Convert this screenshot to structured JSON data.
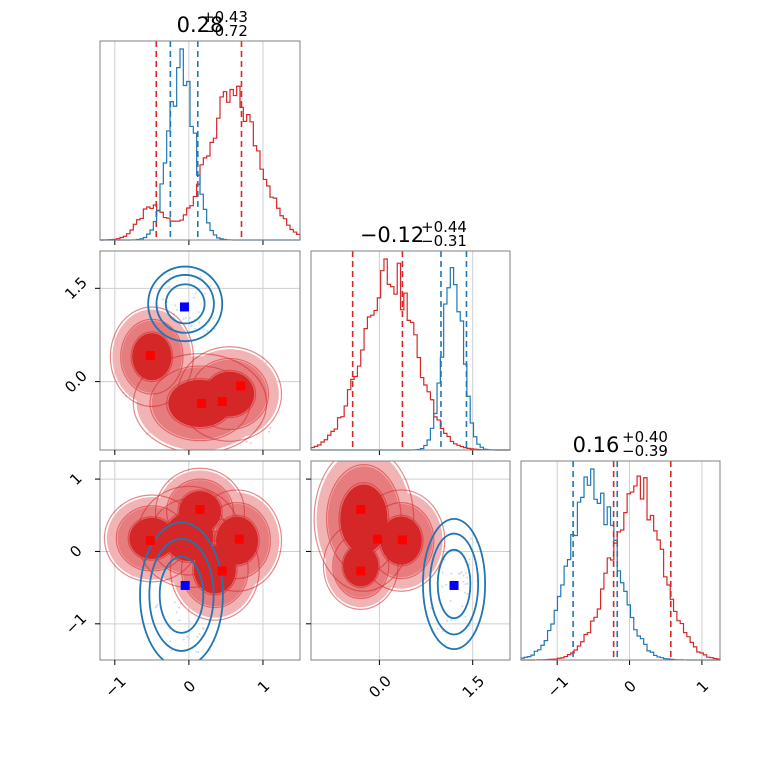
{
  "colors": {
    "red": "#d62728",
    "blue": "#1f77b4",
    "red_fill_outer": "#f2b3b4",
    "red_fill_mid": "#e67c7d",
    "red_fill_inner": "#d62728",
    "red_marker": "#ff0000",
    "blue_marker": "#0000ff"
  },
  "titles": [
    {
      "main": "0.28",
      "sup": "+0.43",
      "sub": "−0.72"
    },
    {
      "main": "−0.12",
      "sup": "+0.44",
      "sub": "−0.31"
    },
    {
      "main": "0.16",
      "sup": "+0.40",
      "sub": "−0.39"
    }
  ],
  "chart_data": {
    "type": "corner",
    "parameters": 3,
    "axes": {
      "p1": {
        "range": [
          -1.2,
          1.5
        ],
        "ticks": [
          -1,
          0,
          1
        ],
        "tick_labels": [
          "−1",
          "0",
          "1"
        ]
      },
      "p2": {
        "range": [
          -1.1,
          2.1
        ],
        "ticks": [
          0.0,
          1.5
        ],
        "tick_labels": [
          "0.0",
          "1.5"
        ]
      },
      "p3": {
        "range": [
          -1.5,
          1.25
        ],
        "ticks": [
          -1,
          0,
          1
        ],
        "tick_labels": [
          "−1",
          "0",
          "1"
        ]
      }
    },
    "grid": true,
    "diagonal": [
      {
        "param": "p1",
        "series": [
          {
            "color": "red",
            "mixture": [
              [
                -0.5,
                0.18,
                0.18
              ],
              [
                0.6,
                0.35,
                0.82
              ]
            ],
            "quantiles": [
              -0.44,
              0.71
            ]
          },
          {
            "color": "blue",
            "mixture": [
              [
                -0.1,
                0.17,
                1.0
              ]
            ],
            "quantiles": [
              -0.25,
              0.12
            ]
          }
        ]
      },
      {
        "param": "p2",
        "series": [
          {
            "color": "red",
            "mixture": [
              [
                0.15,
                0.42,
                1.0
              ]
            ],
            "quantiles": [
              -0.43,
              0.37
            ]
          },
          {
            "color": "blue",
            "mixture": [
              [
                1.18,
                0.16,
                1.0
              ]
            ],
            "quantiles": [
              0.99,
              1.4
            ]
          }
        ]
      },
      {
        "param": "p3",
        "series": [
          {
            "color": "blue",
            "mixture": [
              [
                -0.5,
                0.32,
                1.0
              ]
            ],
            "quantiles": [
              -0.78,
              -0.17
            ]
          },
          {
            "color": "red",
            "mixture": [
              [
                0.1,
                0.35,
                1.0
              ]
            ],
            "quantiles": [
              -0.22,
              0.57
            ]
          }
        ]
      }
    ],
    "panels": [
      {
        "x": "p1",
        "y": "p2",
        "red_modes": [
          [
            -0.5,
            0.4,
            0.28,
            0.4
          ],
          [
            0.15,
            -0.35,
            0.45,
            0.4
          ],
          [
            0.55,
            -0.2,
            0.35,
            0.38
          ]
        ],
        "red_points": [
          [
            -0.52,
            0.42
          ],
          [
            0.17,
            -0.35
          ],
          [
            0.45,
            -0.32
          ],
          [
            0.7,
            -0.07
          ]
        ],
        "blue_modes": [
          [
            -0.05,
            1.25,
            0.25,
            0.3
          ]
        ],
        "blue_point": [
          -0.06,
          1.2
        ]
      },
      {
        "x": "p1",
        "y": "p3",
        "red_modes": [
          [
            -0.5,
            0.18,
            0.32,
            0.3
          ],
          [
            0.15,
            0.55,
            0.3,
            0.3
          ],
          [
            0.65,
            0.15,
            0.3,
            0.35
          ],
          [
            0.35,
            -0.25,
            0.3,
            0.35
          ],
          [
            0.0,
            0.2,
            0.35,
            0.35
          ]
        ],
        "red_points": [
          [
            -0.52,
            0.15
          ],
          [
            0.15,
            0.58
          ],
          [
            0.68,
            0.17
          ],
          [
            0.45,
            -0.27
          ]
        ],
        "blue_modes": [
          [
            -0.1,
            -0.6,
            0.28,
            0.5
          ]
        ],
        "blue_point": [
          -0.05,
          -0.47
        ]
      },
      {
        "x": "p2",
        "y": "p3",
        "red_modes": [
          [
            -0.25,
            0.45,
            0.4,
            0.5
          ],
          [
            -0.3,
            -0.2,
            0.3,
            0.3
          ],
          [
            0.35,
            0.15,
            0.35,
            0.35
          ]
        ],
        "red_points": [
          [
            -0.3,
            0.58
          ],
          [
            -0.03,
            0.17
          ],
          [
            0.37,
            0.16
          ],
          [
            -0.3,
            -0.27
          ]
        ],
        "blue_modes": [
          [
            1.2,
            -0.45,
            0.25,
            0.45
          ]
        ],
        "blue_point": [
          1.2,
          -0.47
        ]
      }
    ]
  }
}
